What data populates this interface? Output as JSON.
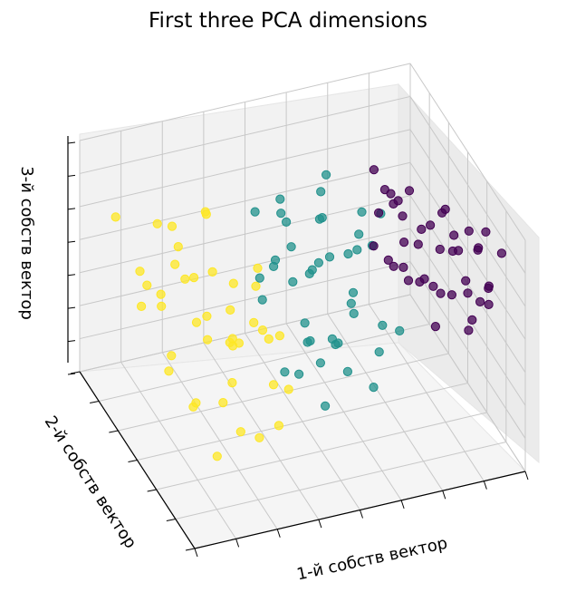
{
  "chart_data": {
    "type": "scatter",
    "title": "First three PCA dimensions",
    "xlabel": "1-й собств вектор",
    "ylabel": "2-й собств вектор",
    "zlabel": "3-й собств вектор",
    "xlim": [
      -4,
      4
    ],
    "ylim": [
      -1.5,
      1.5
    ],
    "zlim": [
      -1,
      1
    ],
    "x_ticks_count": 9,
    "y_ticks_count": 7,
    "z_ticks_count": 8,
    "show_tick_labels": false,
    "grid": true,
    "projection": "3d",
    "view": {
      "elev": 48,
      "azim": -134
    },
    "colormap": "viridis",
    "series": [
      {
        "color": "#440154",
        "points": [
          [
            3.8,
            1.1,
            0.7
          ],
          [
            3.2,
            1.4,
            0.6
          ],
          [
            3.4,
            1.2,
            0.5
          ],
          [
            3.6,
            0.9,
            0.8
          ],
          [
            3.3,
            1.3,
            0.4
          ],
          [
            3.0,
            1.4,
            0.5
          ],
          [
            3.5,
            0.8,
            0.6
          ],
          [
            3.1,
            1.0,
            0.9
          ],
          [
            2.9,
            1.3,
            0.3
          ],
          [
            3.7,
            0.6,
            0.5
          ],
          [
            2.7,
            1.4,
            0.6
          ],
          [
            3.3,
            0.7,
            0.3
          ],
          [
            2.8,
            0.9,
            0.7
          ],
          [
            3.2,
            0.5,
            0.6
          ],
          [
            3.0,
            1.1,
            0.1
          ],
          [
            2.5,
            1.2,
            0.5
          ],
          [
            3.4,
            0.4,
            0.4
          ],
          [
            2.9,
            0.6,
            0.9
          ],
          [
            2.6,
            0.8,
            0.3
          ],
          [
            3.1,
            0.3,
            0.7
          ],
          [
            2.4,
            1.0,
            0.8
          ],
          [
            2.7,
            0.5,
            0.2
          ],
          [
            3.0,
            0.1,
            0.5
          ],
          [
            2.3,
            0.7,
            0.4
          ],
          [
            2.6,
            0.3,
            0.6
          ],
          [
            2.2,
            1.1,
            0.2
          ],
          [
            2.8,
            0.0,
            0.3
          ],
          [
            2.0,
            0.9,
            0.5
          ],
          [
            2.4,
            0.2,
            0.9
          ],
          [
            2.1,
            0.5,
            0.3
          ],
          [
            2.5,
            -0.2,
            0.6
          ],
          [
            1.9,
            0.6,
            0.7
          ],
          [
            2.3,
            -0.1,
            0.1
          ],
          [
            2.7,
            -0.3,
            0.4
          ],
          [
            1.8,
            0.3,
            0.4
          ],
          [
            2.2,
            0.0,
            0.7
          ],
          [
            2.0,
            -0.3,
            0.2
          ],
          [
            1.7,
            0.8,
            0.6
          ],
          [
            2.6,
            -0.5,
            0.5
          ],
          [
            1.9,
            0.1,
            0.9
          ],
          [
            2.1,
            -0.4,
            0.8
          ],
          [
            2.4,
            -0.6,
            0.3
          ]
        ]
      },
      {
        "color": "#21918c",
        "points": [
          [
            -0.2,
            0.4,
            0.5
          ],
          [
            0.3,
            0.1,
            0.4
          ],
          [
            0.6,
            -0.2,
            0.6
          ],
          [
            -0.5,
            0.6,
            0.2
          ],
          [
            0.1,
            -0.4,
            0.3
          ],
          [
            0.9,
            0.3,
            0.1
          ],
          [
            -0.3,
            -0.1,
            0.7
          ],
          [
            0.4,
            0.5,
            -0.1
          ],
          [
            1.2,
            -0.1,
            0.3
          ],
          [
            0.0,
            0.2,
            -0.2
          ],
          [
            -0.7,
            0.0,
            0.4
          ],
          [
            0.7,
            -0.5,
            0.0
          ],
          [
            1.5,
            0.2,
            0.5
          ],
          [
            -0.1,
            -0.6,
            0.1
          ],
          [
            0.5,
            0.8,
            0.3
          ],
          [
            1.0,
            -0.6,
            0.6
          ],
          [
            -0.4,
            0.9,
            0.0
          ],
          [
            0.2,
            -0.8,
            0.5
          ],
          [
            1.3,
            0.6,
            -0.2
          ],
          [
            0.8,
            0.0,
            -0.4
          ],
          [
            -0.6,
            -0.4,
            -0.1
          ],
          [
            1.6,
            -0.3,
            0.2
          ],
          [
            0.3,
            1.0,
            0.6
          ],
          [
            -0.2,
            -0.9,
            -0.2
          ],
          [
            1.1,
            0.9,
            0.2
          ],
          [
            0.6,
            -0.9,
            -0.3
          ],
          [
            -0.8,
            0.4,
            -0.3
          ],
          [
            1.8,
            0.1,
            0.7
          ],
          [
            0.4,
            -0.3,
            -0.5
          ],
          [
            0.9,
            0.5,
            0.8
          ],
          [
            1.4,
            -0.8,
            -0.1
          ],
          [
            -0.1,
            0.7,
            -0.5
          ],
          [
            0.7,
            1.1,
            -0.2
          ],
          [
            1.9,
            -0.5,
            0.4
          ],
          [
            0.2,
            0.3,
            0.9
          ],
          [
            1.7,
            0.7,
            0.0
          ],
          [
            -0.5,
            -0.7,
            0.5
          ],
          [
            0.5,
            -1.1,
            0.2
          ],
          [
            1.0,
            0.1,
            -0.6
          ],
          [
            1.5,
            -1.0,
            0.5
          ],
          [
            -0.3,
            1.1,
            0.3
          ],
          [
            0.1,
            -0.2,
            -0.7
          ]
        ]
      },
      {
        "color": "#fde725",
        "points": [
          [
            -3.4,
            0.9,
            0.6
          ],
          [
            -2.8,
            1.2,
            0.5
          ],
          [
            -3.0,
            0.4,
            0.7
          ],
          [
            -2.5,
            0.8,
            0.3
          ],
          [
            -3.6,
            0.2,
            0.4
          ],
          [
            -2.2,
            1.1,
            0.6
          ],
          [
            -2.9,
            -0.2,
            0.5
          ],
          [
            -3.3,
            -0.5,
            0.2
          ],
          [
            -2.0,
            0.5,
            0.1
          ],
          [
            -2.6,
            -0.6,
            0.6
          ],
          [
            -1.8,
            0.9,
            0.4
          ],
          [
            -3.1,
            -0.9,
            0.1
          ],
          [
            -2.3,
            0.0,
            -0.1
          ],
          [
            -1.5,
            0.4,
            0.5
          ],
          [
            -2.7,
            1.3,
            -0.2
          ],
          [
            -1.9,
            -0.3,
            0.3
          ],
          [
            -3.5,
            -1.1,
            0.5
          ],
          [
            -2.1,
            -0.8,
            0.0
          ],
          [
            -1.6,
            -0.1,
            -0.2
          ],
          [
            -2.4,
            -1.2,
            0.3
          ],
          [
            -1.2,
            0.7,
            0.2
          ],
          [
            -3.2,
            0.6,
            -0.3
          ],
          [
            -1.7,
            -0.7,
            0.6
          ],
          [
            -2.8,
            -0.4,
            -0.4
          ],
          [
            -1.3,
            -0.4,
            0.1
          ],
          [
            -2.0,
            1.4,
            0.2
          ],
          [
            -1.0,
            0.2,
            -0.1
          ],
          [
            -2.5,
            -1.0,
            -0.2
          ],
          [
            -1.4,
            -1.0,
            0.4
          ],
          [
            -3.7,
            0.5,
            0.0
          ],
          [
            -1.1,
            -0.7,
            -0.3
          ],
          [
            -2.2,
            0.3,
            -0.5
          ],
          [
            -1.8,
            -1.3,
            0.0
          ],
          [
            -0.9,
            -0.2,
            0.3
          ],
          [
            -2.9,
            0.9,
            -0.6
          ],
          [
            -1.5,
            1.0,
            -0.4
          ],
          [
            -2.6,
            -1.4,
            -0.5
          ],
          [
            -1.2,
            -1.2,
            -0.6
          ],
          [
            -0.8,
            0.5,
            -0.4
          ],
          [
            -2.3,
            -0.3,
            -0.8
          ],
          [
            -3.0,
            1.4,
            0.3
          ],
          [
            -1.6,
            0.6,
            -0.7
          ]
        ]
      }
    ]
  }
}
